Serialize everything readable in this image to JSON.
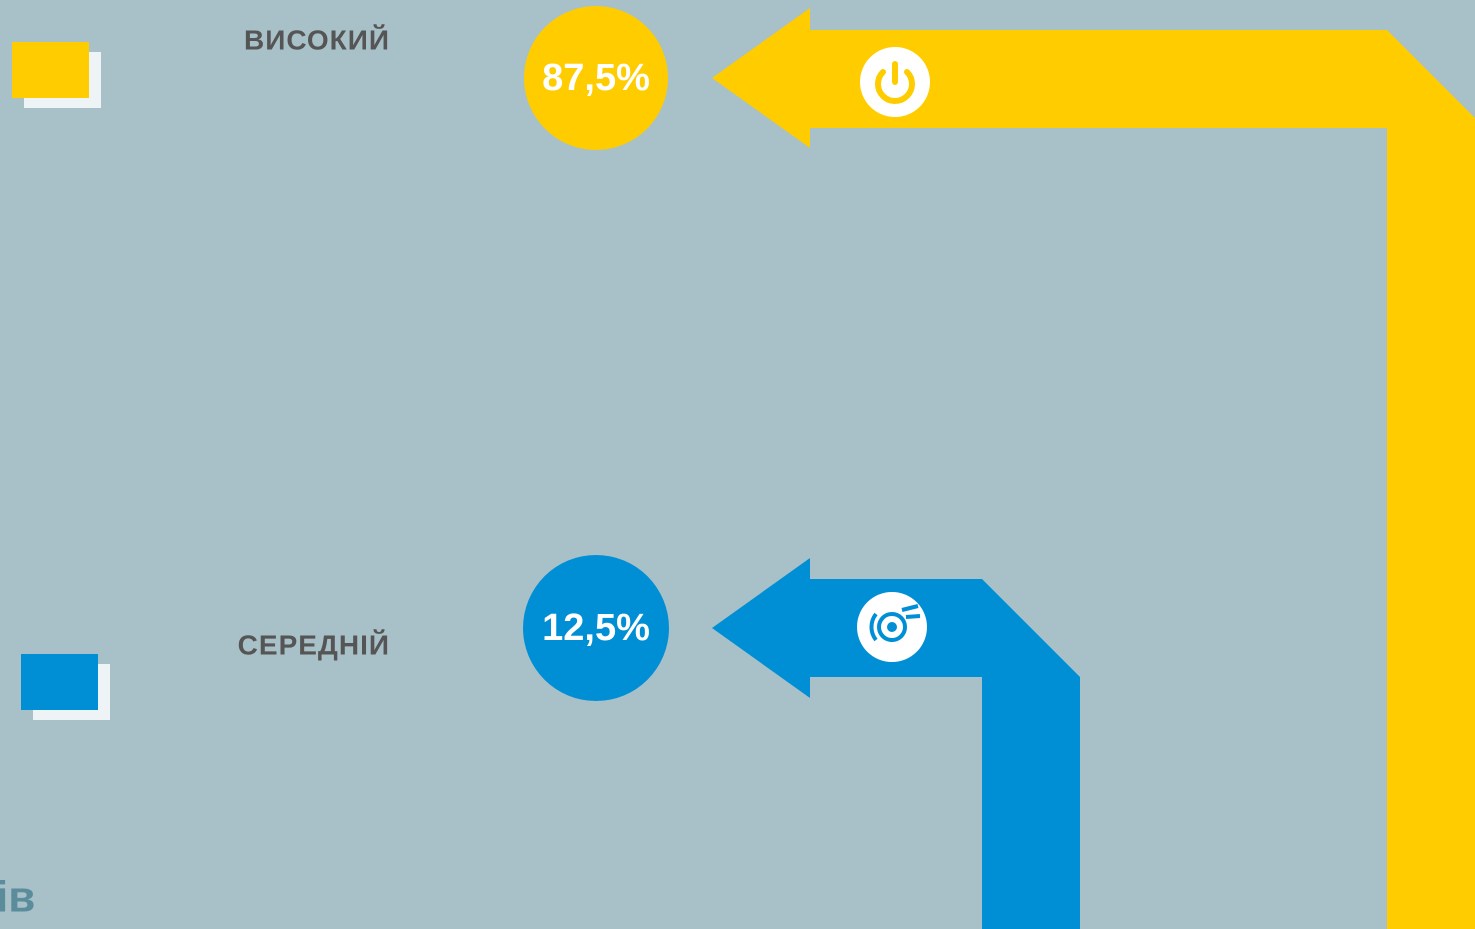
{
  "items": [
    {
      "label": "ВИСОКИЙ",
      "value": "87,5%"
    },
    {
      "label": "СЕРЕДНІЙ",
      "value": "12,5%"
    }
  ],
  "footer": {
    "text": "ів"
  }
}
